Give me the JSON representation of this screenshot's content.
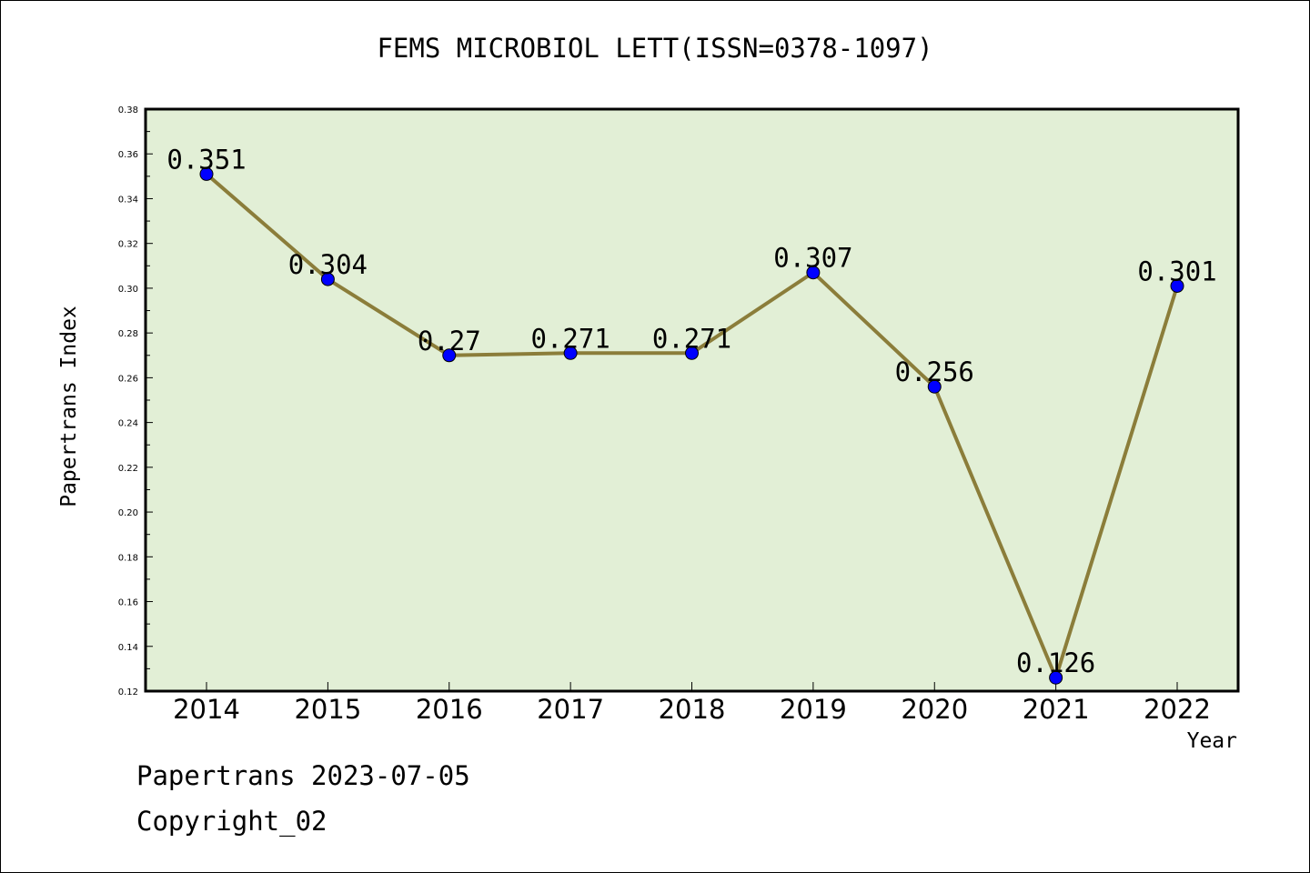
{
  "chart_data": {
    "type": "line",
    "title": "FEMS MICROBIOL LETT(ISSN=0378-1097)",
    "xlabel": "Year",
    "ylabel": "Papertrans Index",
    "categories": [
      "2014",
      "2015",
      "2016",
      "2017",
      "2018",
      "2019",
      "2020",
      "2021",
      "2022"
    ],
    "series": [
      {
        "values": [
          0.351,
          0.304,
          0.27,
          0.271,
          0.271,
          0.307,
          0.256,
          0.126,
          0.301
        ],
        "data_labels": [
          "0.351",
          "0.304",
          "0.27",
          "0.271",
          "0.271",
          "0.307",
          "0.256",
          "0.126",
          "0.301"
        ]
      }
    ],
    "ylim": [
      0.12,
      0.38
    ],
    "yticks": [
      "0.12",
      "0.14",
      "0.16",
      "0.18",
      "0.20",
      "0.22",
      "0.24",
      "0.26",
      "0.28",
      "0.30",
      "0.32",
      "0.34",
      "0.36",
      "0.38"
    ],
    "grid": false,
    "colors": {
      "plot_background": "#e2efd6",
      "line": "#8b7d3a",
      "marker": "#0000ff"
    }
  },
  "footer": {
    "line1": "Papertrans 2023-07-05",
    "line2": "Copyright_02"
  }
}
